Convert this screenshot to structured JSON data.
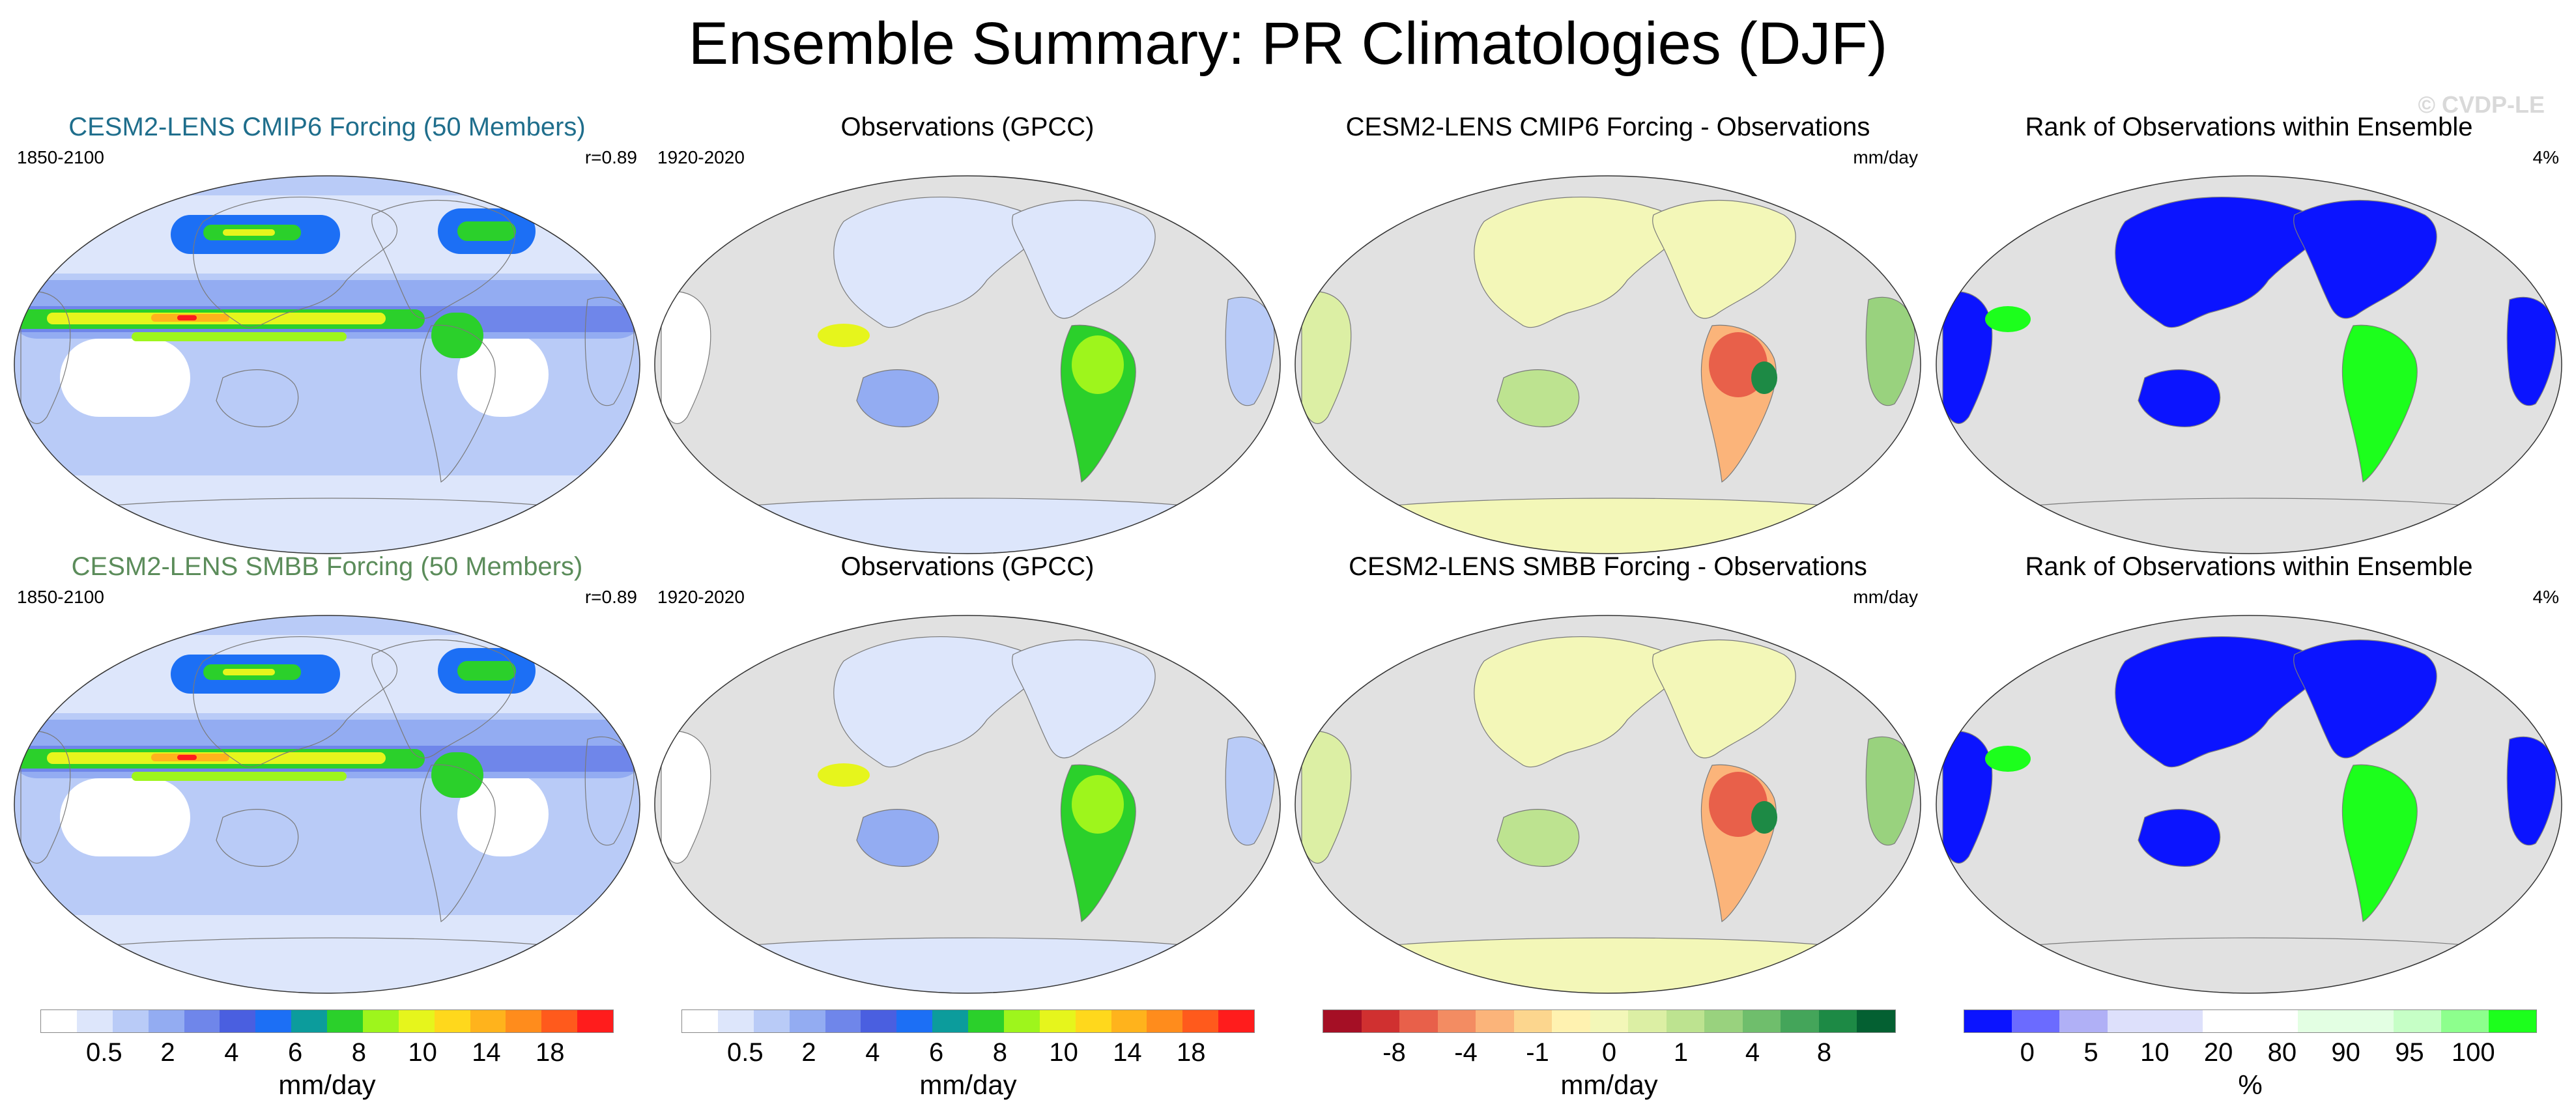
{
  "title": "Ensemble Summary: PR Climatologies (DJF)",
  "watermark": "© CVDP-LE",
  "colors": {
    "ocean": "#e1e1e1",
    "land_outline": "#7a7a7a",
    "title_cmip6": "#1f6e8c",
    "title_smbb": "#5b8c5a"
  },
  "panels": [
    {
      "title": "CESM2-LENS CMIP6 Forcing (50 Members)",
      "title_color": "#1f6e8c",
      "left": "1850-2100",
      "right": "r=0.89",
      "kind": "model"
    },
    {
      "title": "Observations (GPCC)",
      "title_color": "#000000",
      "left": "1920-2020",
      "right": "",
      "kind": "obs"
    },
    {
      "title": "CESM2-LENS CMIP6 Forcing - Observations",
      "title_color": "#000000",
      "left": "",
      "right": "mm/day",
      "kind": "diff"
    },
    {
      "title": "Rank of Observations within Ensemble",
      "title_color": "#000000",
      "left": "",
      "right": "4%",
      "kind": "rank"
    },
    {
      "title": "CESM2-LENS SMBB Forcing (50 Members)",
      "title_color": "#5b8c5a",
      "left": "1850-2100",
      "right": "r=0.89",
      "kind": "model"
    },
    {
      "title": "Observations (GPCC)",
      "title_color": "#000000",
      "left": "1920-2020",
      "right": "",
      "kind": "obs"
    },
    {
      "title": "CESM2-LENS SMBB Forcing - Observations",
      "title_color": "#000000",
      "left": "",
      "right": "mm/day",
      "kind": "diff"
    },
    {
      "title": "Rank of Observations within Ensemble",
      "title_color": "#000000",
      "left": "",
      "right": "4%",
      "kind": "rank"
    }
  ],
  "colorbars": [
    {
      "unit": "mm/day",
      "colors": [
        "#ffffff",
        "#dde6fb",
        "#b9cbf7",
        "#93acf2",
        "#6f86ea",
        "#4a5fe0",
        "#1c6ff5",
        "#0c9c9c",
        "#2bd02b",
        "#9ef51c",
        "#e6f51c",
        "#ffd81c",
        "#ffb31c",
        "#ff8c1c",
        "#ff5a1c",
        "#ff1c1c"
      ],
      "ticks": [
        "0.5",
        "2",
        "4",
        "6",
        "8",
        "10",
        "14",
        "18"
      ]
    },
    {
      "unit": "mm/day",
      "colors": [
        "#ffffff",
        "#dde6fb",
        "#b9cbf7",
        "#93acf2",
        "#6f86ea",
        "#4a5fe0",
        "#1c6ff5",
        "#0c9c9c",
        "#2bd02b",
        "#9ef51c",
        "#e6f51c",
        "#ffd81c",
        "#ffb31c",
        "#ff8c1c",
        "#ff5a1c",
        "#ff1c1c"
      ],
      "ticks": [
        "0.5",
        "2",
        "4",
        "6",
        "8",
        "10",
        "14",
        "18"
      ]
    },
    {
      "unit": "mm/day",
      "colors": [
        "#a50f25",
        "#d03030",
        "#e8604a",
        "#f38c62",
        "#fbb47a",
        "#fcd68e",
        "#fff2b0",
        "#f3f7b8",
        "#dcefa4",
        "#bde390",
        "#99d27e",
        "#6fbe6c",
        "#44a55a",
        "#1d8a45",
        "#046032"
      ],
      "ticks": [
        "-8",
        "-4",
        "-1",
        "0",
        "1",
        "4",
        "8"
      ]
    },
    {
      "unit": "%",
      "colors": [
        "#0b14ff",
        "#6b6bff",
        "#b0b0f6",
        "#dde0fb",
        "#dde0fb",
        "#ffffff",
        "#ffffff",
        "#e3ffe3",
        "#e3ffe3",
        "#c6ffc6",
        "#8dff8d",
        "#1cff1c"
      ],
      "ticks": [
        "0",
        "5",
        "10",
        "20",
        "80",
        "90",
        "95",
        "100"
      ]
    }
  ]
}
